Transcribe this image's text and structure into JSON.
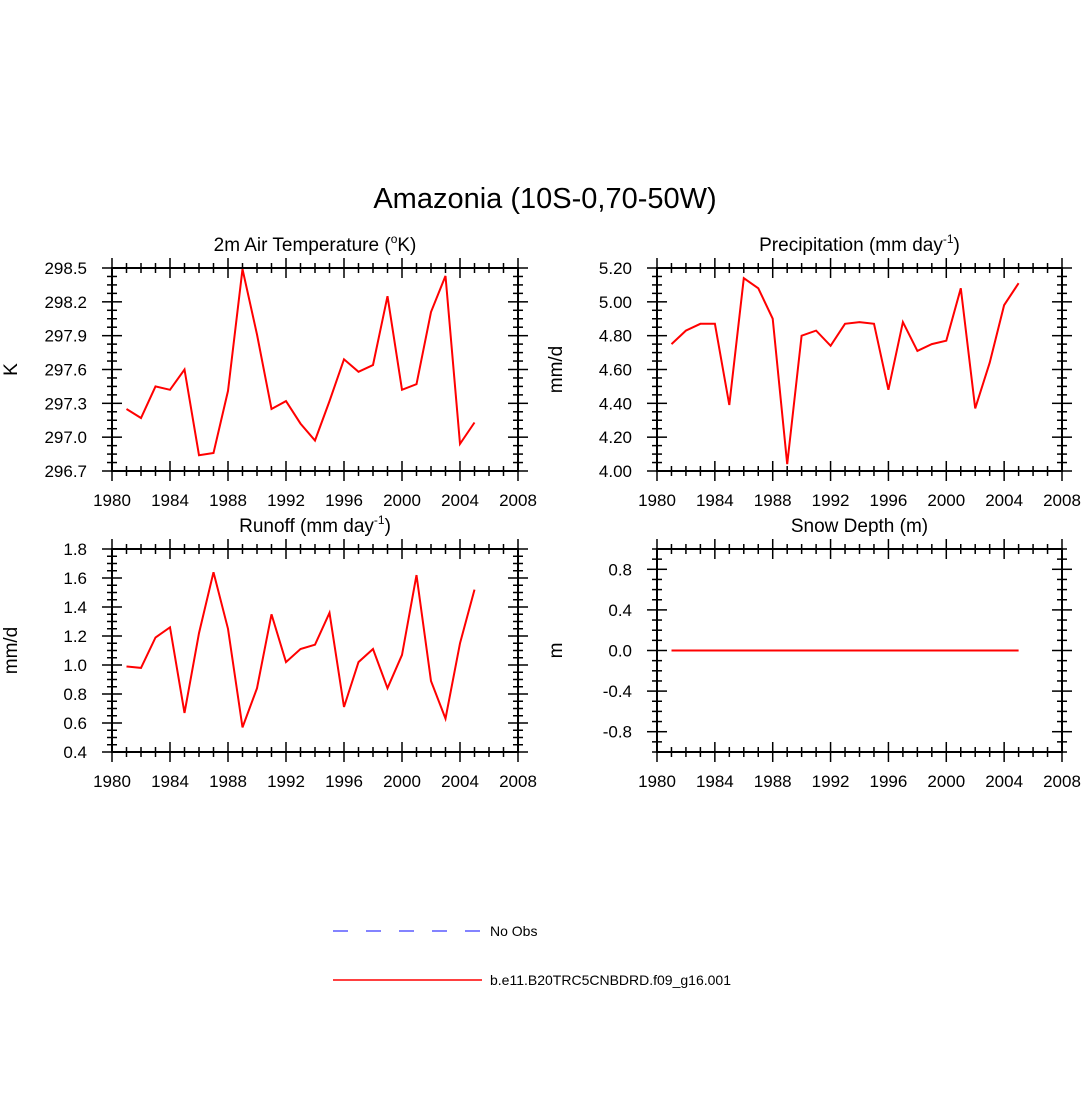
{
  "figure": {
    "title": "Amazonia (10S-0,70-50W)"
  },
  "chart_data": [
    {
      "type": "line",
      "title": "2m Air Temperature (°K)",
      "title_parts": [
        "2m Air Temperature (",
        "o",
        "K)"
      ],
      "xlabel": "",
      "ylabel": "K",
      "xlim": [
        1980,
        2008
      ],
      "ylim": [
        296.7,
        298.5
      ],
      "xticks": [
        1980,
        1984,
        1988,
        1992,
        1996,
        2000,
        2004,
        2008
      ],
      "yticks": [
        296.7,
        297.0,
        297.3,
        297.6,
        297.9,
        298.2,
        298.5
      ],
      "ytick_labels": [
        "296.7",
        "297.0",
        "297.3",
        "297.6",
        "297.9",
        "298.2",
        "298.5"
      ],
      "x": [
        1981,
        1982,
        1983,
        1984,
        1985,
        1986,
        1987,
        1988,
        1989,
        1990,
        1991,
        1992,
        1993,
        1994,
        1995,
        1996,
        1997,
        1998,
        1999,
        2000,
        2001,
        2002,
        2003,
        2004,
        2005
      ],
      "series": [
        {
          "name": "b.e11.B20TRC5CNBDRD.f09_g16.001",
          "color": "#ff0000",
          "values": [
            297.25,
            297.17,
            297.45,
            297.42,
            297.6,
            296.84,
            296.86,
            297.41,
            298.49,
            297.91,
            297.25,
            297.32,
            297.12,
            296.97,
            297.32,
            297.69,
            297.58,
            297.64,
            298.25,
            297.42,
            297.47,
            298.11,
            298.43,
            296.94,
            297.13
          ]
        }
      ]
    },
    {
      "type": "line",
      "title": "Precipitation (mm day-1)",
      "title_parts": [
        "Precipitation (mm day",
        "-1",
        ")"
      ],
      "xlabel": "",
      "ylabel": "mm/d",
      "xlim": [
        1980,
        2008
      ],
      "ylim": [
        4.0,
        5.2
      ],
      "xticks": [
        1980,
        1984,
        1988,
        1992,
        1996,
        2000,
        2004,
        2008
      ],
      "yticks": [
        4.0,
        4.2,
        4.4,
        4.6,
        4.8,
        5.0,
        5.2
      ],
      "ytick_labels": [
        "4.00",
        "4.20",
        "4.40",
        "4.60",
        "4.80",
        "5.00",
        "5.20"
      ],
      "x": [
        1981,
        1982,
        1983,
        1984,
        1985,
        1986,
        1987,
        1988,
        1989,
        1990,
        1991,
        1992,
        1993,
        1994,
        1995,
        1996,
        1997,
        1998,
        1999,
        2000,
        2001,
        2002,
        2003,
        2004,
        2005
      ],
      "series": [
        {
          "name": "b.e11.B20TRC5CNBDRD.f09_g16.001",
          "color": "#ff0000",
          "values": [
            4.75,
            4.83,
            4.87,
            4.87,
            4.39,
            5.14,
            5.08,
            4.9,
            4.04,
            4.8,
            4.83,
            4.74,
            4.87,
            4.88,
            4.87,
            4.48,
            4.88,
            4.71,
            4.75,
            4.77,
            5.08,
            4.37,
            4.64,
            4.98,
            5.11
          ]
        }
      ]
    },
    {
      "type": "line",
      "title": "Runoff (mm day-1)",
      "title_parts": [
        "Runoff (mm day",
        "-1",
        ")"
      ],
      "xlabel": "",
      "ylabel": "mm/d",
      "xlim": [
        1980,
        2008
      ],
      "ylim": [
        0.4,
        1.8
      ],
      "xticks": [
        1980,
        1984,
        1988,
        1992,
        1996,
        2000,
        2004,
        2008
      ],
      "yticks": [
        0.4,
        0.6,
        0.8,
        1.0,
        1.2,
        1.4,
        1.6,
        1.8
      ],
      "ytick_labels": [
        "0.4",
        "0.6",
        "0.8",
        "1.0",
        "1.2",
        "1.4",
        "1.6",
        "1.8"
      ],
      "x": [
        1981,
        1982,
        1983,
        1984,
        1985,
        1986,
        1987,
        1988,
        1989,
        1990,
        1991,
        1992,
        1993,
        1994,
        1995,
        1996,
        1997,
        1998,
        1999,
        2000,
        2001,
        2002,
        2003,
        2004,
        2005
      ],
      "series": [
        {
          "name": "b.e11.B20TRC5CNBDRD.f09_g16.001",
          "color": "#ff0000",
          "values": [
            0.99,
            0.98,
            1.19,
            1.26,
            0.67,
            1.22,
            1.64,
            1.25,
            0.57,
            0.84,
            1.35,
            1.02,
            1.11,
            1.14,
            1.36,
            0.71,
            1.02,
            1.11,
            0.84,
            1.07,
            1.62,
            0.89,
            0.63,
            1.15,
            1.52
          ]
        }
      ]
    },
    {
      "type": "line",
      "title": "Snow Depth (m)",
      "title_parts": [
        "Snow Depth (m)",
        "",
        ""
      ],
      "xlabel": "",
      "ylabel": "m",
      "xlim": [
        1980,
        2008
      ],
      "ylim": [
        -1.0,
        1.0
      ],
      "xticks": [
        1980,
        1984,
        1988,
        1992,
        1996,
        2000,
        2004,
        2008
      ],
      "yticks": [
        -0.8,
        -0.4,
        0.0,
        0.4,
        0.8
      ],
      "ytick_labels": [
        "-0.8",
        "-0.4",
        "0.0",
        "0.4",
        "0.8"
      ],
      "x": [
        1981,
        1982,
        1983,
        1984,
        1985,
        1986,
        1987,
        1988,
        1989,
        1990,
        1991,
        1992,
        1993,
        1994,
        1995,
        1996,
        1997,
        1998,
        1999,
        2000,
        2001,
        2002,
        2003,
        2004,
        2005
      ],
      "series": [
        {
          "name": "b.e11.B20TRC5CNBDRD.f09_g16.001",
          "color": "#ff0000",
          "values": [
            0,
            0,
            0,
            0,
            0,
            0,
            0,
            0,
            0,
            0,
            0,
            0,
            0,
            0,
            0,
            0,
            0,
            0,
            0,
            0,
            0,
            0,
            0,
            0,
            0
          ]
        }
      ]
    }
  ],
  "legend": [
    {
      "label": "No Obs",
      "color": "#5a5aff",
      "style": "dashed"
    },
    {
      "label": "b.e11.B20TRC5CNBDRD.f09_g16.001",
      "color": "#ff0000",
      "style": "solid"
    }
  ]
}
